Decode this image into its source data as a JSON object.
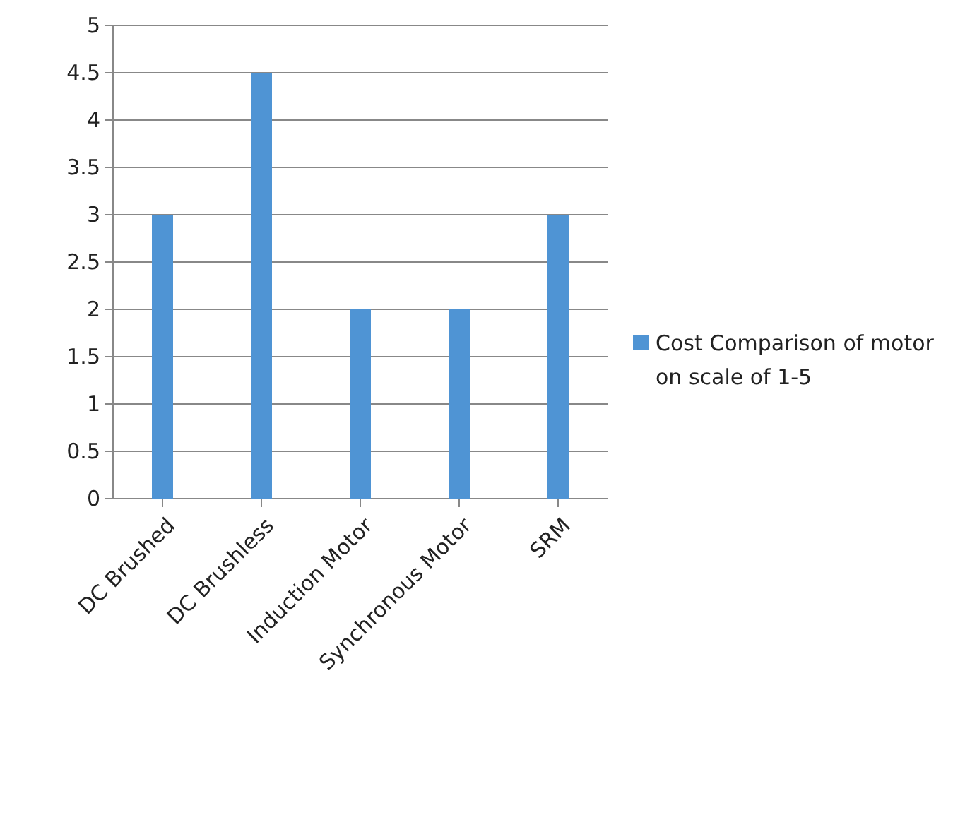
{
  "chart_data": {
    "type": "bar",
    "categories": [
      "DC Brushed",
      "DC Brushless",
      "Induction Motor",
      "Synchronous Motor",
      "SRM"
    ],
    "series": [
      {
        "name": "Cost Comparison of motor on scale of 1-5",
        "color": "#4f94d4",
        "values": [
          3,
          4.5,
          2,
          2,
          3
        ]
      }
    ],
    "ylim": [
      0,
      5
    ],
    "yticks": [
      0,
      0.5,
      1,
      1.5,
      2,
      2.5,
      3,
      3.5,
      4,
      4.5,
      5
    ],
    "grid": "y",
    "legend": "right"
  }
}
